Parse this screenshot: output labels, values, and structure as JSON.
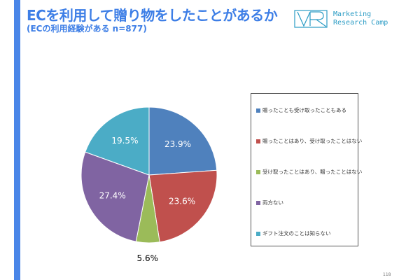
{
  "header": {
    "title": "ECを利用して贈り物をしたことがあるか",
    "subtitle": "(ECの利用経験がある n=877)"
  },
  "logo": {
    "line1": "Marketing",
    "line2": "Research Camp",
    "mark": "VR"
  },
  "page_number": "118",
  "chart_data": {
    "type": "pie",
    "title": "ECを利用して贈り物をしたことがあるか",
    "categories": [
      "贈ったことも受け取ったこともある",
      "贈ったことはあり、受け取ったことはない",
      "受け取ったことはあり、贈ったことはない",
      "両方ない",
      "ギフト注文のことは知らない"
    ],
    "values": [
      23.9,
      23.6,
      5.6,
      27.4,
      19.5
    ],
    "labels": [
      "23.9%",
      "23.6%",
      "5.6%",
      "27.4%",
      "19.5%"
    ],
    "colors": [
      "#4f81bd",
      "#c0504d",
      "#9bbb59",
      "#8064a2",
      "#4bacc6"
    ],
    "legend_position": "right",
    "start": "top, clockwise"
  }
}
